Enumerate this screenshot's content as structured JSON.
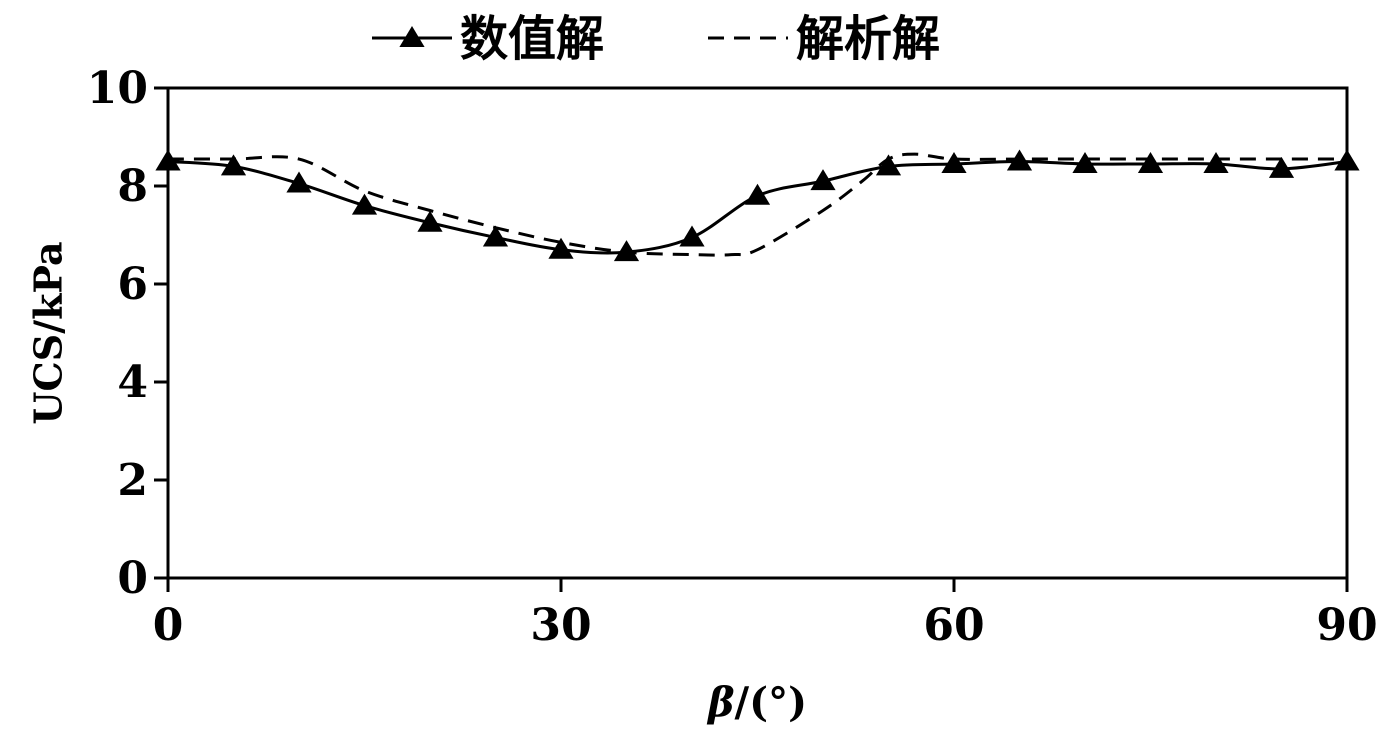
{
  "chart_data": {
    "type": "line",
    "xlabel": "β/(°)",
    "ylabel": "UCS/kPa",
    "xlim": [
      0,
      90
    ],
    "ylim": [
      0,
      10
    ],
    "xticks": [
      0,
      30,
      60,
      90
    ],
    "yticks": [
      0,
      2,
      4,
      6,
      8,
      10
    ],
    "grid": false,
    "legend_position": "top",
    "series": [
      {
        "name": "数值解",
        "style": "solid-triangle",
        "color": "#000000",
        "x": [
          0,
          5,
          10,
          15,
          20,
          25,
          30,
          35,
          40,
          45,
          50,
          55,
          60,
          65,
          70,
          75,
          80,
          85,
          90
        ],
        "y": [
          8.5,
          8.4,
          8.05,
          7.6,
          7.25,
          6.95,
          6.7,
          6.65,
          6.95,
          7.8,
          8.1,
          8.4,
          8.45,
          8.5,
          8.45,
          8.45,
          8.45,
          8.35,
          8.5
        ]
      },
      {
        "name": "解析解",
        "style": "dashed",
        "color": "#000000",
        "x": [
          0,
          5,
          10,
          15,
          20,
          25,
          30,
          35,
          40,
          43,
          45,
          50,
          53,
          55,
          57,
          60,
          65,
          70,
          75,
          80,
          85,
          90
        ],
        "y": [
          8.55,
          8.55,
          8.55,
          7.9,
          7.5,
          7.15,
          6.85,
          6.65,
          6.6,
          6.6,
          6.7,
          7.5,
          8.1,
          8.55,
          8.65,
          8.55,
          8.55,
          8.55,
          8.55,
          8.55,
          8.55,
          8.55
        ]
      }
    ]
  }
}
